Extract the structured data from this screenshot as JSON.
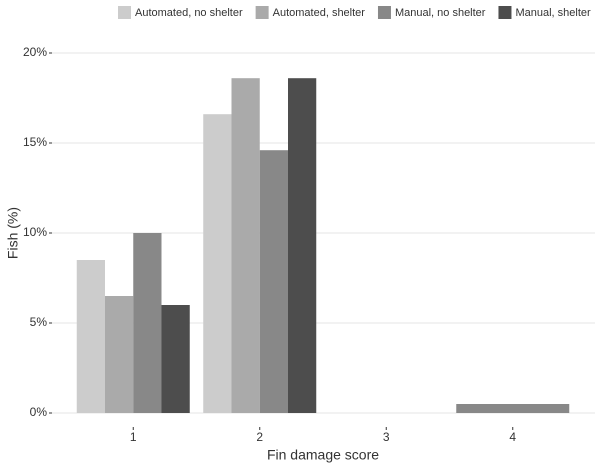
{
  "chart_data": {
    "type": "bar",
    "x_label": "Fin damage score",
    "y_label": "Fish (%)",
    "categories": [
      "1",
      "2",
      "3",
      "4"
    ],
    "series": [
      {
        "name": "Automated, no shelter",
        "color": "#cccccc",
        "values": [
          8.5,
          16.6,
          null,
          null
        ]
      },
      {
        "name": "Automated, shelter",
        "color": "#aaaaaa",
        "values": [
          6.5,
          18.6,
          null,
          null
        ]
      },
      {
        "name": "Manual, no shelter",
        "color": "#888888",
        "values": [
          10.0,
          14.6,
          null,
          0.5
        ]
      },
      {
        "name": "Manual, shelter",
        "color": "#4d4d4d",
        "values": [
          6.0,
          18.6,
          null,
          null
        ]
      }
    ],
    "ylim": [
      0,
      20
    ],
    "yticks": [
      {
        "value": 0,
        "label": "0%"
      },
      {
        "value": 5,
        "label": "5%"
      },
      {
        "value": 10,
        "label": "10%"
      },
      {
        "value": 15,
        "label": "15%"
      },
      {
        "value": 20,
        "label": "20%"
      }
    ],
    "grid": true,
    "legend": "top"
  }
}
